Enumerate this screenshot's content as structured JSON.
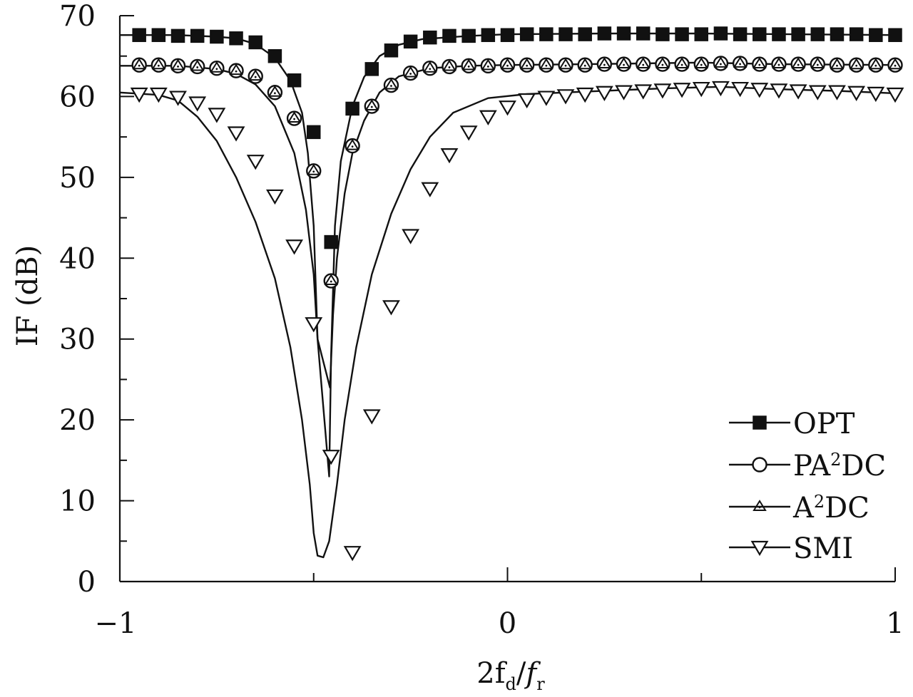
{
  "chart_data": {
    "type": "line",
    "xlabel": {
      "base": "2f",
      "sub1": "d",
      "slash": "/",
      "f": "f",
      "sub2": "r"
    },
    "ylabel": "IF (dB)",
    "xlim": [
      -1,
      1
    ],
    "ylim": [
      0,
      70
    ],
    "x_ticks": [
      -1,
      0,
      1
    ],
    "x_tick_labels": [
      "−1",
      "0",
      "1"
    ],
    "x_minor_ticks": [
      -0.5,
      0.5
    ],
    "y_ticks": [
      0,
      10,
      20,
      30,
      40,
      50,
      60,
      70
    ],
    "y_tick_labels": [
      "0",
      "10",
      "20",
      "30",
      "40",
      "50",
      "60",
      "70"
    ],
    "grid": false,
    "legend": {
      "placement": "bottom-right"
    },
    "series": [
      {
        "name": "OPT",
        "legend_parts": [
          "OPT"
        ],
        "marker": "square-filled",
        "color": "#111111",
        "curve": [
          [
            -1,
            67.6
          ],
          [
            -0.85,
            67.6
          ],
          [
            -0.75,
            67.4
          ],
          [
            -0.7,
            67.2
          ],
          [
            -0.65,
            66.5
          ],
          [
            -0.6,
            64.8
          ],
          [
            -0.56,
            62
          ],
          [
            -0.53,
            58
          ],
          [
            -0.515,
            53
          ],
          [
            -0.5,
            44
          ],
          [
            -0.49,
            30
          ],
          [
            -0.46,
            13
          ],
          [
            -0.455,
            28
          ],
          [
            -0.445,
            44
          ],
          [
            -0.43,
            52
          ],
          [
            -0.4,
            58.8
          ],
          [
            -0.37,
            62.4
          ],
          [
            -0.33,
            65
          ],
          [
            -0.28,
            66.4
          ],
          [
            -0.22,
            67.1
          ],
          [
            -0.1,
            67.5
          ],
          [
            0,
            67.7
          ],
          [
            0.25,
            67.8
          ],
          [
            0.5,
            67.8
          ],
          [
            1,
            67.6
          ]
        ],
        "markers_x": [
          -0.95,
          -0.9,
          -0.85,
          -0.8,
          -0.75,
          -0.7,
          -0.65,
          -0.6,
          -0.55,
          -0.5,
          -0.455,
          -0.4,
          -0.35,
          -0.3,
          -0.25,
          -0.2,
          -0.15,
          -0.1,
          -0.05,
          0,
          0.05,
          0.1,
          0.15,
          0.2,
          0.25,
          0.3,
          0.35,
          0.4,
          0.45,
          0.5,
          0.55,
          0.6,
          0.65,
          0.7,
          0.75,
          0.8,
          0.85,
          0.9,
          0.95,
          1
        ],
        "markers_y": [
          67.6,
          67.6,
          67.5,
          67.5,
          67.4,
          67.2,
          66.7,
          65.0,
          62.0,
          55.6,
          42.0,
          58.5,
          63.4,
          65.7,
          66.8,
          67.3,
          67.5,
          67.5,
          67.6,
          67.6,
          67.7,
          67.7,
          67.7,
          67.7,
          67.8,
          67.8,
          67.8,
          67.7,
          67.7,
          67.7,
          67.8,
          67.7,
          67.7,
          67.7,
          67.7,
          67.7,
          67.7,
          67.7,
          67.6,
          67.6
        ]
      },
      {
        "name": "PA²DC",
        "legend_parts": [
          "PA",
          "2",
          "DC"
        ],
        "marker": "circle-open",
        "color": "#111111",
        "curve": [
          [
            -1,
            63.8
          ],
          [
            -0.85,
            63.8
          ],
          [
            -0.75,
            63.4
          ],
          [
            -0.7,
            62.8
          ],
          [
            -0.65,
            61.5
          ],
          [
            -0.6,
            58.8
          ],
          [
            -0.55,
            53
          ],
          [
            -0.52,
            46
          ],
          [
            -0.5,
            38
          ],
          [
            -0.49,
            30
          ],
          [
            -0.458,
            24
          ],
          [
            -0.45,
            33
          ],
          [
            -0.44,
            40
          ],
          [
            -0.42,
            48
          ],
          [
            -0.4,
            53
          ],
          [
            -0.37,
            57
          ],
          [
            -0.33,
            60.5
          ],
          [
            -0.28,
            62.5
          ],
          [
            -0.2,
            63.5
          ],
          [
            -0.1,
            63.8
          ],
          [
            0,
            63.9
          ],
          [
            0.2,
            64
          ],
          [
            0.5,
            64.2
          ],
          [
            0.7,
            64
          ],
          [
            1,
            63.9
          ]
        ],
        "markers_x": [
          -0.95,
          -0.9,
          -0.85,
          -0.8,
          -0.75,
          -0.7,
          -0.65,
          -0.6,
          -0.55,
          -0.5,
          -0.455,
          -0.4,
          -0.35,
          -0.3,
          -0.25,
          -0.2,
          -0.15,
          -0.1,
          -0.05,
          0,
          0.05,
          0.1,
          0.15,
          0.2,
          0.25,
          0.3,
          0.35,
          0.4,
          0.45,
          0.5,
          0.55,
          0.6,
          0.65,
          0.7,
          0.75,
          0.8,
          0.85,
          0.9,
          0.95,
          1
        ],
        "markers_y": [
          63.9,
          63.9,
          63.8,
          63.7,
          63.5,
          63.2,
          62.5,
          60.5,
          57.3,
          50.8,
          37.2,
          53.9,
          58.8,
          61.4,
          62.9,
          63.5,
          63.7,
          63.8,
          63.8,
          63.9,
          63.9,
          63.9,
          63.9,
          63.9,
          64.0,
          64.0,
          64.0,
          64.0,
          64.0,
          64.0,
          64.1,
          64.1,
          64.0,
          64.0,
          64.0,
          64.0,
          63.9,
          63.9,
          63.9,
          63.9
        ]
      },
      {
        "name": "A²DC",
        "legend_parts": [
          "A",
          "2",
          "DC"
        ],
        "marker": "triangle-up-open",
        "color": "#111111",
        "curve": [],
        "markers_x": [
          -0.95,
          -0.9,
          -0.85,
          -0.8,
          -0.75,
          -0.7,
          -0.65,
          -0.6,
          -0.55,
          -0.5,
          -0.455,
          -0.4,
          -0.35,
          -0.3,
          -0.25,
          -0.2,
          -0.15,
          -0.1,
          -0.05,
          0,
          0.05,
          0.1,
          0.15,
          0.2,
          0.25,
          0.3,
          0.35,
          0.4,
          0.45,
          0.5,
          0.55,
          0.6,
          0.65,
          0.7,
          0.75,
          0.8,
          0.85,
          0.9,
          0.95,
          1
        ],
        "markers_y": [
          63.9,
          63.9,
          63.8,
          63.7,
          63.5,
          63.2,
          62.5,
          60.5,
          57.3,
          50.8,
          37.2,
          53.9,
          58.8,
          61.4,
          62.9,
          63.5,
          63.7,
          63.8,
          63.8,
          63.9,
          63.9,
          63.9,
          63.9,
          63.9,
          64.0,
          64.0,
          64.0,
          64.0,
          64.0,
          64.0,
          64.1,
          64.1,
          64.0,
          64.0,
          64.0,
          64.0,
          63.9,
          63.9,
          63.9,
          63.9
        ]
      },
      {
        "name": "SMI",
        "legend_parts": [
          "SMI"
        ],
        "marker": "triangle-down-open",
        "color": "#111111",
        "curve": [
          [
            -1,
            60.5
          ],
          [
            -0.9,
            60.2
          ],
          [
            -0.85,
            59.5
          ],
          [
            -0.8,
            57.5
          ],
          [
            -0.75,
            54.5
          ],
          [
            -0.7,
            50
          ],
          [
            -0.65,
            44.5
          ],
          [
            -0.6,
            37.5
          ],
          [
            -0.56,
            29
          ],
          [
            -0.53,
            20
          ],
          [
            -0.51,
            12
          ],
          [
            -0.5,
            6
          ],
          [
            -0.49,
            3.2
          ],
          [
            -0.475,
            3
          ],
          [
            -0.46,
            5
          ],
          [
            -0.44,
            12
          ],
          [
            -0.42,
            20
          ],
          [
            -0.39,
            29
          ],
          [
            -0.35,
            38
          ],
          [
            -0.3,
            45.5
          ],
          [
            -0.25,
            51
          ],
          [
            -0.2,
            55
          ],
          [
            -0.14,
            58
          ],
          [
            -0.05,
            59.8
          ],
          [
            0.05,
            60.3
          ],
          [
            0.2,
            60.6
          ],
          [
            0.4,
            61
          ],
          [
            0.55,
            61.2
          ],
          [
            0.7,
            60.9
          ],
          [
            0.85,
            60.7
          ],
          [
            1,
            60.4
          ]
        ],
        "markers_x": [
          -0.95,
          -0.9,
          -0.85,
          -0.8,
          -0.75,
          -0.7,
          -0.65,
          -0.6,
          -0.55,
          -0.5,
          -0.455,
          -0.4,
          -0.35,
          -0.3,
          -0.25,
          -0.2,
          -0.15,
          -0.1,
          -0.05,
          0,
          0.05,
          0.1,
          0.15,
          0.2,
          0.25,
          0.3,
          0.35,
          0.4,
          0.45,
          0.5,
          0.55,
          0.6,
          0.65,
          0.7,
          0.75,
          0.8,
          0.85,
          0.9,
          0.95,
          1
        ],
        "markers_y": [
          60.3,
          60.3,
          59.9,
          59.2,
          57.8,
          55.5,
          52.0,
          47.7,
          41.5,
          31.9,
          15.5,
          3.6,
          20.5,
          34.0,
          42.8,
          48.6,
          52.8,
          55.6,
          57.5,
          58.7,
          59.6,
          59.9,
          60.1,
          60.3,
          60.5,
          60.6,
          60.7,
          60.8,
          60.9,
          61.0,
          61.1,
          61.0,
          60.9,
          60.8,
          60.7,
          60.6,
          60.6,
          60.5,
          60.4,
          60.3
        ]
      }
    ]
  }
}
